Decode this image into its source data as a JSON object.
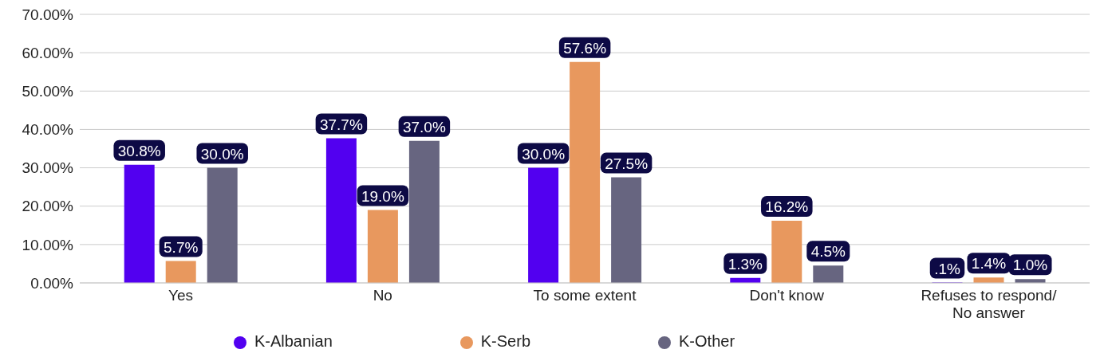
{
  "chart_data": {
    "type": "bar",
    "categories": [
      "Yes",
      "No",
      "To some extent",
      "Don't know",
      "Refuses to respond/\nNo answer"
    ],
    "series": [
      {
        "name": "K-Albanian",
        "color": "#5200f0",
        "values": [
          30.8,
          37.7,
          30.0,
          1.3,
          0.1
        ],
        "value_labels": [
          "30.8%",
          "37.7%",
          "30.0%",
          "1.3%",
          ".1%"
        ]
      },
      {
        "name": "K-Serb",
        "color": "#e8985e",
        "values": [
          5.7,
          19.0,
          57.6,
          16.2,
          1.4
        ],
        "value_labels": [
          "5.7%",
          "19.0%",
          "57.6%",
          "16.2%",
          "1.4%"
        ]
      },
      {
        "name": "K-Other",
        "color": "#676580",
        "values": [
          30.0,
          37.0,
          27.5,
          4.5,
          1.0
        ],
        "value_labels": [
          "30.0%",
          "37.0%",
          "27.5%",
          "4.5%",
          "1.0%"
        ]
      }
    ],
    "ylim": [
      0,
      70
    ],
    "yticks": [
      {
        "value": 0,
        "label": "0.00%"
      },
      {
        "value": 10,
        "label": "10.00%"
      },
      {
        "value": 20,
        "label": "20.00%"
      },
      {
        "value": 30,
        "label": "30.00%"
      },
      {
        "value": 40,
        "label": "40.00%"
      },
      {
        "value": 50,
        "label": "50.00%"
      },
      {
        "value": 60,
        "label": "60.00%"
      },
      {
        "value": 70,
        "label": "70.00%"
      }
    ],
    "grid": "y",
    "legend": "bottom"
  }
}
